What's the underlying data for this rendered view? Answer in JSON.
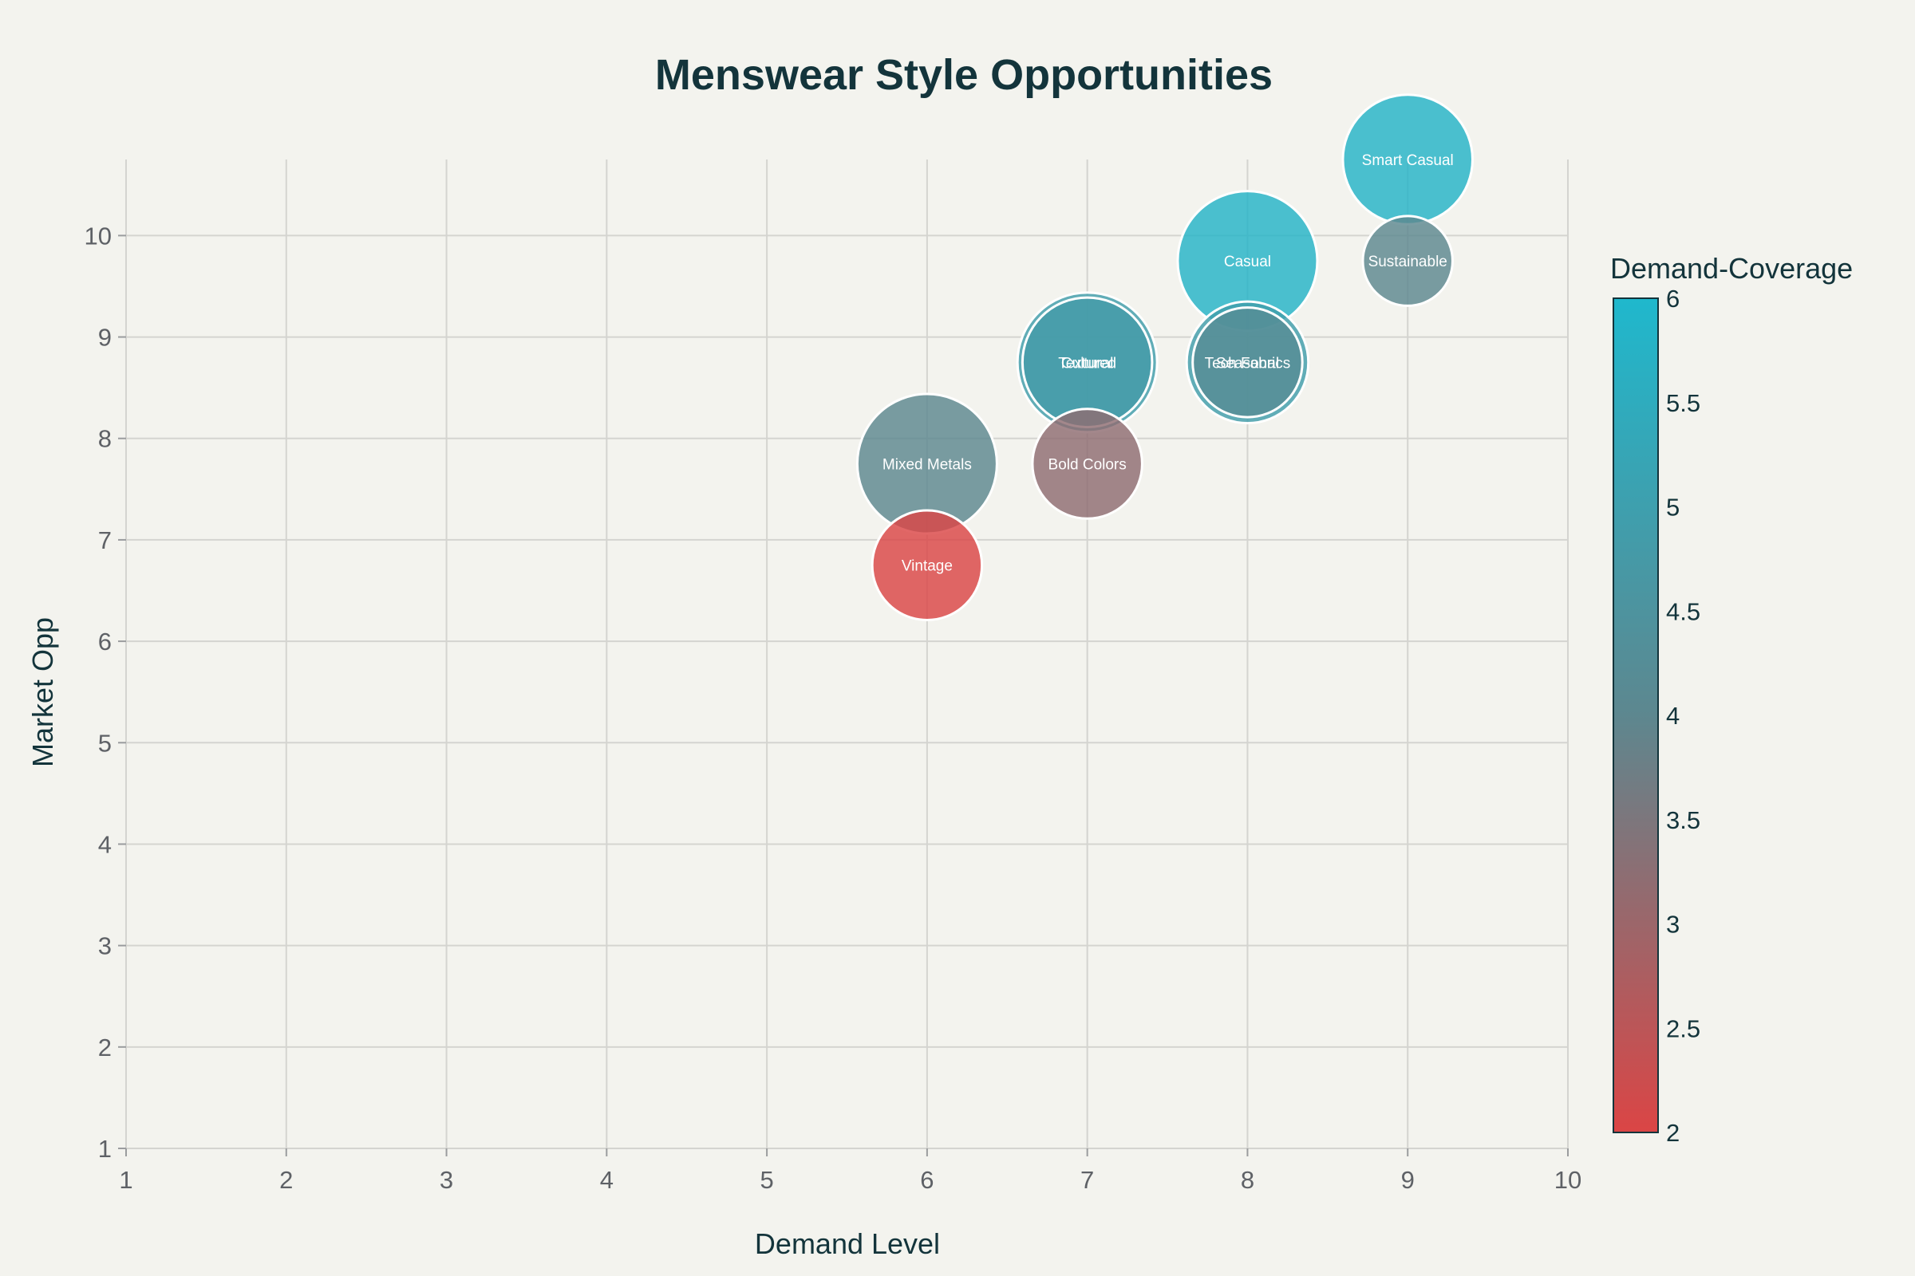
{
  "chart_data": {
    "type": "scatter",
    "title": "Menswear Style Opportunities",
    "xlabel": "Demand Level",
    "ylabel": "Market Opp",
    "xlim": [
      1,
      10
    ],
    "ylim": [
      1,
      10.75
    ],
    "xticks": [
      "1",
      "2",
      "3",
      "4",
      "5",
      "6",
      "7",
      "8",
      "9",
      "10"
    ],
    "yticks": [
      "1",
      "2",
      "3",
      "4",
      "5",
      "6",
      "7",
      "8",
      "9",
      "10"
    ],
    "grid": true,
    "colorbar": {
      "title": "Demand-Coverage",
      "range": [
        2,
        6
      ],
      "ticks": [
        "2",
        "2.5",
        "3",
        "3.5",
        "4",
        "4.5",
        "5",
        "5.5",
        "6"
      ],
      "low_color": "#db4545",
      "mid_color": "#5d878f",
      "high_color": "#1fb8cd"
    },
    "points": [
      {
        "label": "Smart Casual",
        "x": 9,
        "y": 10.75,
        "size": 6.5,
        "color_value": 5.8
      },
      {
        "label": "Casual",
        "x": 8,
        "y": 9.75,
        "size": 7,
        "color_value": 5.8
      },
      {
        "label": "Sustainable",
        "x": 9,
        "y": 9.75,
        "size": 4.5,
        "color_value": 4.0
      },
      {
        "label": "Textured",
        "x": 7,
        "y": 8.75,
        "size": 7,
        "color_value": 4.9
      },
      {
        "label": "Cultural",
        "x": 7,
        "y": 8.75,
        "size": 6.5,
        "color_value": 4.8
      },
      {
        "label": "Tech Fabrics",
        "x": 8,
        "y": 8.75,
        "size": 6.1,
        "color_value": 4.9
      },
      {
        "label": "Seasonal",
        "x": 8,
        "y": 8.75,
        "size": 5.5,
        "color_value": 4.2
      },
      {
        "label": "Mixed Metals",
        "x": 6,
        "y": 7.75,
        "size": 7,
        "color_value": 4.0
      },
      {
        "label": "Bold Colors",
        "x": 7,
        "y": 7.75,
        "size": 5.5,
        "color_value": 3.2
      },
      {
        "label": "Vintage",
        "x": 6,
        "y": 6.75,
        "size": 5.5,
        "color_value": 2.0
      }
    ]
  }
}
